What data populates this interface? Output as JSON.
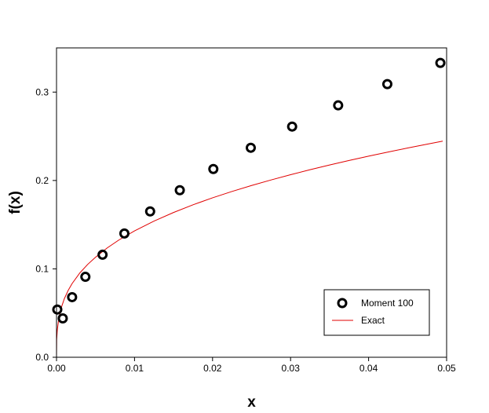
{
  "chart_data": {
    "type": "scatter",
    "xlabel": "x",
    "ylabel": "f(x)",
    "xlim": [
      0,
      0.05
    ],
    "ylim": [
      0,
      0.35
    ],
    "x_ticks": [
      {
        "value": 0.0,
        "label": "0.00"
      },
      {
        "value": 0.01,
        "label": "0.01"
      },
      {
        "value": 0.02,
        "label": "0.02"
      },
      {
        "value": 0.03,
        "label": "0.03"
      },
      {
        "value": 0.04,
        "label": "0.04"
      },
      {
        "value": 0.05,
        "label": "0.05"
      }
    ],
    "y_ticks": [
      {
        "value": 0.0,
        "label": "0.0"
      },
      {
        "value": 0.1,
        "label": "0.1"
      },
      {
        "value": 0.2,
        "label": "0.2"
      },
      {
        "value": 0.3,
        "label": "0.3"
      }
    ],
    "grid": false,
    "legend_position": "bottom-right",
    "series": [
      {
        "name": "Moment 100",
        "kind": "markers",
        "marker": "open-circle",
        "color": "#000000",
        "x": [
          0.0001,
          0.0008,
          0.002,
          0.0037,
          0.0059,
          0.0087,
          0.012,
          0.0158,
          0.0201,
          0.0249,
          0.0302,
          0.0361,
          0.0424,
          0.0492
        ],
        "y": [
          0.054,
          0.044,
          0.068,
          0.091,
          0.116,
          0.14,
          0.165,
          0.189,
          0.213,
          0.237,
          0.261,
          0.285,
          0.309,
          0.333
        ]
      },
      {
        "name": "Exact",
        "kind": "line",
        "color": "#e00000",
        "x": [
          0,
          2e-05,
          0.0001,
          0.0003,
          0.0006,
          0.001,
          0.0015,
          0.002,
          0.003,
          0.004,
          0.005,
          0.0065,
          0.008,
          0.01,
          0.0125,
          0.015,
          0.0175,
          0.02,
          0.0225,
          0.025,
          0.0275,
          0.03,
          0.0325,
          0.035,
          0.0375,
          0.04,
          0.0425,
          0.045,
          0.0475,
          0.0495
        ],
        "y": [
          0,
          0.02,
          0.0307,
          0.0443,
          0.0558,
          0.0662,
          0.0757,
          0.0834,
          0.0955,
          0.1051,
          0.1132,
          0.1237,
          0.1327,
          0.143,
          0.1541,
          0.1638,
          0.1725,
          0.1804,
          0.1876,
          0.1943,
          0.2006,
          0.2065,
          0.2122,
          0.2175,
          0.2226,
          0.2275,
          0.2322,
          0.2367,
          0.2411,
          0.2445
        ]
      }
    ]
  }
}
